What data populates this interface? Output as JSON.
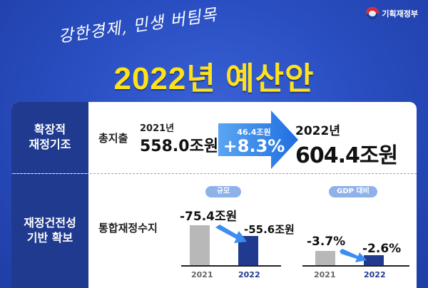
{
  "header": {
    "logo_text": "기획재정부",
    "slogan": "강한경제, 민생 버팀목",
    "title": "2022년 예산안"
  },
  "rows": [
    {
      "category_line1": "확장적",
      "category_line2": "재정기조",
      "label": "총지출",
      "prev_year": "2021년",
      "prev_amount": "558.0조원",
      "increase_amount": "46.4조원",
      "increase_rate": "+8.3%",
      "new_year": "2022년",
      "new_amount": "604.4조원"
    },
    {
      "category_line1": "재정건전성",
      "category_line2": "기반 확보",
      "label": "통합재정수지"
    }
  ],
  "colors": {
    "background": "#2a4fc2",
    "title_yellow": "#ffe21a",
    "navy": "#1f3a8f",
    "arrow_blue": "#2f7ee6",
    "gray_bar": "#b8b8b8",
    "pill": "#8fb1ea"
  },
  "chart_data": [
    {
      "type": "bar",
      "title": "규모",
      "categories": [
        "2021",
        "2022"
      ],
      "values": [
        -75.4,
        -55.6
      ],
      "value_labels": [
        "-75.4조원",
        "-55.6조원"
      ],
      "unit": "조원"
    },
    {
      "type": "bar",
      "title": "GDP 대비",
      "categories": [
        "2021",
        "2022"
      ],
      "values": [
        -3.7,
        -2.6
      ],
      "value_labels": [
        "-3.7%",
        "-2.6%"
      ],
      "unit": "%"
    }
  ]
}
